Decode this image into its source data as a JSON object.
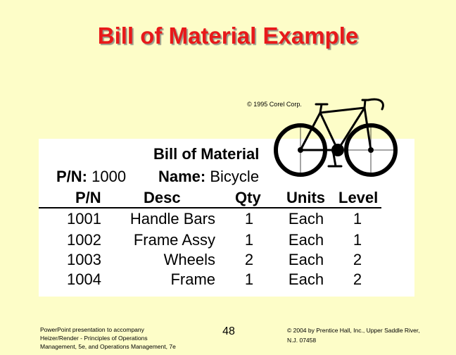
{
  "slide": {
    "title": "Bill of Material Example",
    "image_credit": "© 1995 Corel Corp.",
    "bicycle_image": "bicycle-illustration"
  },
  "bom": {
    "heading": "Bill of Material",
    "pn_label": "P/N:",
    "pn_value": "1000",
    "name_label": "Name:",
    "name_value": "Bicycle",
    "columns": [
      "P/N",
      "Desc",
      "Qty",
      "Units",
      "Level"
    ],
    "rows": [
      {
        "pn": "1001",
        "desc": "Handle Bars",
        "qty": "1",
        "units": "Each",
        "level": "1"
      },
      {
        "pn": "1002",
        "desc": "Frame Assy",
        "qty": "1",
        "units": "Each",
        "level": "1"
      },
      {
        "pn": "1003",
        "desc": "Wheels",
        "qty": "2",
        "units": "Each",
        "level": "2"
      },
      {
        "pn": "1004",
        "desc": "Frame",
        "qty": "1",
        "units": "Each",
        "level": "2"
      }
    ]
  },
  "footer": {
    "left_lines": [
      "PowerPoint presentation to accompany",
      "Heizer/Render - Principles of Operations",
      "Management, 5e, and Operations Management, 7e"
    ],
    "page_number": "48",
    "right_lines": [
      "© 2004 by Prentice Hall, Inc., Upper Saddle River,",
      "N.J. 07458"
    ]
  },
  "colors": {
    "background": "#fdfdc8",
    "title": "#e8191a",
    "panel": "#ffffff"
  }
}
